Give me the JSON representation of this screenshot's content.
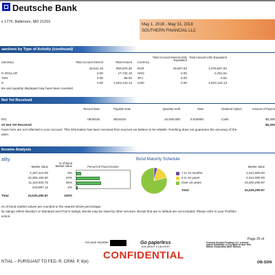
{
  "header": {
    "logo": "Deutsche Bank",
    "address": "x 1776, Baltimore, MD 21203",
    "period": "May 1, 2018 - May 31, 2018",
    "client": "SOUTHERN FINANCIAL LLC"
  },
  "summary": {
    "title": "sactions by Type of Activity",
    "title_note": "(continued)",
    "columns": [
      "Summary",
      "Total Accrued Interest",
      "Total Amount",
      "Currency",
      "Total Accrued Interest USD Equivalent",
      "Total Amount USD Equivalent"
    ],
    "rows": [
      {
        "values": [
          "18,541.10",
          "959,876.30",
          "EUR",
          "19,607.82",
          "1,076,667.92"
        ]
      },
      {
        "label": "G DOLLAR",
        "values": [
          "0.00",
          "17,732.18",
          "HKD",
          "0.00",
          "2,261.51"
        ]
      },
      {
        "label": "YEN",
        "values": [
          "0.00",
          "-58.00",
          "JPY",
          "0.00",
          "-0.52"
        ]
      },
      {
        "label": "S",
        "values": [
          "0.00",
          "1,623,143.13",
          "USD",
          "0.00",
          "1,623,143.13"
        ]
      }
    ],
    "note": "les and quantity displayed may have been rounded."
  },
  "dividends": {
    "title": "Not Yet Received",
    "columns": [
      "Record Date",
      "Payable Date",
      "Quantity Held",
      "Rate",
      "Dividend Option",
      "Amount of Payme"
    ],
    "rows": [
      {
        "label": "INC",
        "values": [
          "05/30/18",
          "06/20/18",
          "10,000.000",
          "0.620000",
          "Cash",
          "$6,200"
        ]
      }
    ],
    "total": {
      "label": "sh Not Yet Received",
      "amount": "$6,200"
    },
    "notes": [
      "hown here are not reflected in your account. This information has been received from sources we believe to be reliable. Pershing does not guarantee the accuracy of the",
      "ation."
    ]
  },
  "income": {
    "title": "Income Analysis",
    "quality": {
      "title": "ality",
      "columns": [
        "Market Value",
        "% of Bond Market Value",
        "Percent of Fixed Income"
      ],
      "rows": [
        [
          "2,187,410.00",
          "9%"
        ],
        [
          "10,265,150.00",
          "43%"
        ],
        [
          "11,118,943.75",
          "46%"
        ],
        [
          "443,897.12",
          "2%"
        ]
      ],
      "total": {
        "label": "Total",
        "value": "24,025,290.87",
        "pct": "100%"
      }
    },
    "maturity": {
      "title": "Bond Maturity Schedule",
      "column": "Market Value",
      "rows": [
        {
          "label": "7 to 12 months",
          "color": "#6a4c9c",
          "value": "1,012,500.00"
        },
        {
          "label": "6 to 10 years",
          "color": "#f2d43a",
          "value": "4,012,500.00"
        },
        {
          "label": "Over 10 years",
          "color": "#8cc63f",
          "value": "19,000,290.87"
        }
      ],
      "total": {
        "label": "Total",
        "value": "24,025,290.87"
      }
    },
    "notes": [
      "es of bond market values are rounded to the nearest whole percentage.",
      "ity ratings reflect Moody's or Standard and Poor's ratings. Bonds may be rated by other services. Bonds that are in default are not included. Please refer to your Portfolio",
      "ection."
    ]
  },
  "footer": {
    "account": "Account Number",
    "page": "Page 25 of",
    "paperless": "Go paperless",
    "paperless_sub": "ASK ABOUT E-DELIVERY",
    "stamp": "CONFIDENTIAL",
    "legend": "NTIAL – PURSUANT TO FED. R. CRIM. P. 6(e)",
    "clearing": "Clearing through Pershing LLC, a wholly owned subsidiary of The Bank of New York Mellon Corporation (BNY Mellon)",
    "doc_id": "DB-SDN"
  }
}
